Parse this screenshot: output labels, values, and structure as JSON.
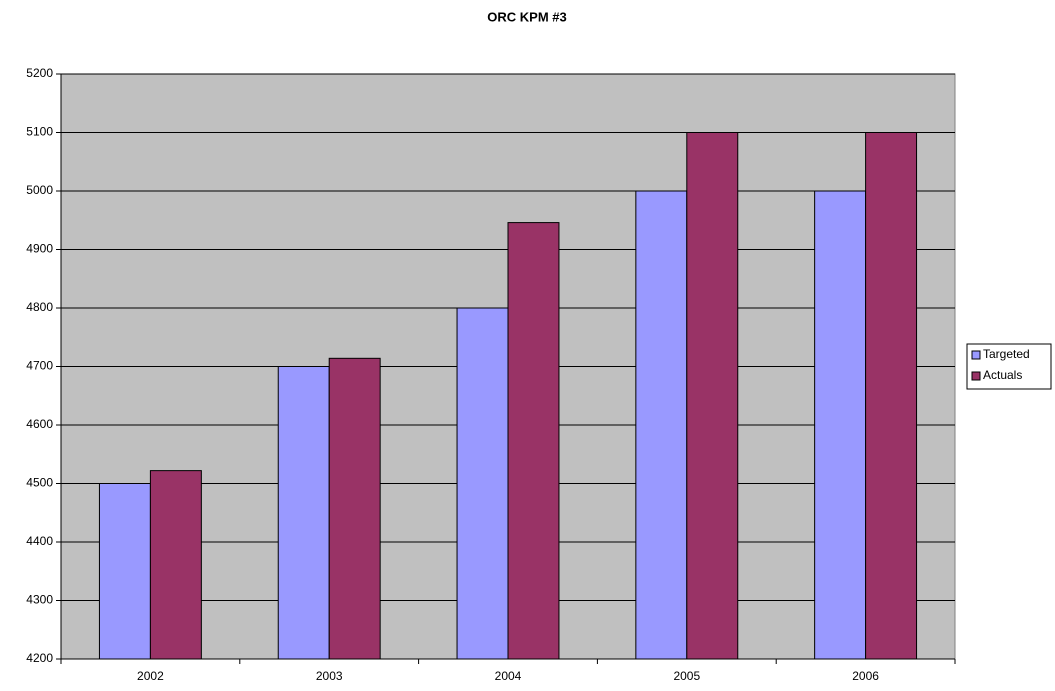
{
  "chart_data": {
    "type": "bar",
    "title": "ORC KPM #3",
    "categories": [
      "2002",
      "2003",
      "2004",
      "2005",
      "2006"
    ],
    "series": [
      {
        "name": "Targeted",
        "color": "#9999ff",
        "values": [
          4500,
          4700,
          4800,
          5000,
          5000
        ]
      },
      {
        "name": "Actuals",
        "color": "#993366",
        "values": [
          4522,
          4714,
          4946,
          5100,
          5100
        ]
      }
    ],
    "ylim": [
      4200,
      5200
    ],
    "yticks": [
      4200,
      4300,
      4400,
      4500,
      4600,
      4700,
      4800,
      4900,
      5000,
      5100,
      5200
    ],
    "grid": true,
    "legend": "right",
    "plot_background": "#c0c0c0"
  }
}
